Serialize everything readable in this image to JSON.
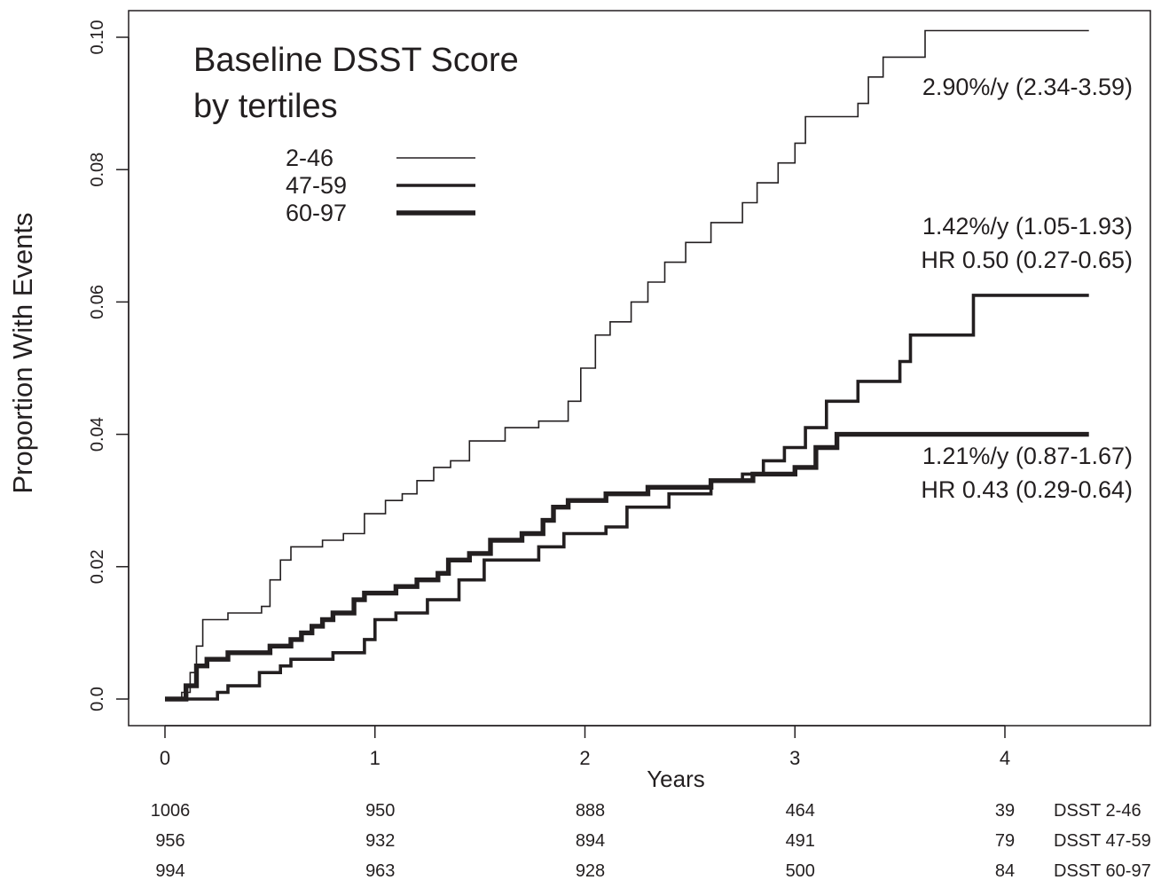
{
  "chart_data": {
    "type": "line",
    "title": "Baseline DSST Score\nby tertiles",
    "xlabel": "Years",
    "ylabel": "Proportion With Events",
    "xlim": [
      -0.2,
      4.6
    ],
    "ylim": [
      -0.004,
      0.104
    ],
    "x_ticks": [
      0,
      1,
      2,
      3,
      4
    ],
    "x_tick_labels": [
      "0",
      "1",
      "2",
      "3",
      "4"
    ],
    "y_ticks": [
      0.0,
      0.02,
      0.04,
      0.06,
      0.08,
      0.1
    ],
    "y_tick_labels": [
      "0.0",
      "0.02",
      "0.04",
      "0.06",
      "0.08",
      "0.10"
    ],
    "grid": false,
    "legend_position": "top-left",
    "series": [
      {
        "name": "2-46",
        "color": "#231f20",
        "stroke": "thin",
        "points": [
          [
            0,
            0
          ],
          [
            0.08,
            0.001
          ],
          [
            0.12,
            0.004
          ],
          [
            0.15,
            0.008
          ],
          [
            0.18,
            0.012
          ],
          [
            0.3,
            0.013
          ],
          [
            0.46,
            0.014
          ],
          [
            0.5,
            0.018
          ],
          [
            0.55,
            0.021
          ],
          [
            0.6,
            0.023
          ],
          [
            0.75,
            0.024
          ],
          [
            0.85,
            0.025
          ],
          [
            0.95,
            0.028
          ],
          [
            1.05,
            0.03
          ],
          [
            1.13,
            0.031
          ],
          [
            1.2,
            0.033
          ],
          [
            1.28,
            0.035
          ],
          [
            1.36,
            0.036
          ],
          [
            1.45,
            0.039
          ],
          [
            1.62,
            0.041
          ],
          [
            1.78,
            0.042
          ],
          [
            1.92,
            0.045
          ],
          [
            1.98,
            0.05
          ],
          [
            2.05,
            0.055
          ],
          [
            2.12,
            0.057
          ],
          [
            2.22,
            0.06
          ],
          [
            2.3,
            0.063
          ],
          [
            2.38,
            0.066
          ],
          [
            2.48,
            0.069
          ],
          [
            2.6,
            0.072
          ],
          [
            2.75,
            0.075
          ],
          [
            2.82,
            0.078
          ],
          [
            2.92,
            0.081
          ],
          [
            3.0,
            0.084
          ],
          [
            3.05,
            0.088
          ],
          [
            3.3,
            0.09
          ],
          [
            3.35,
            0.094
          ],
          [
            3.42,
            0.097
          ],
          [
            3.62,
            0.101
          ],
          [
            4.4,
            0.101
          ]
        ]
      },
      {
        "name": "47-59",
        "color": "#231f20",
        "stroke": "medium",
        "points": [
          [
            0,
            0
          ],
          [
            0.25,
            0.001
          ],
          [
            0.3,
            0.002
          ],
          [
            0.45,
            0.004
          ],
          [
            0.55,
            0.005
          ],
          [
            0.6,
            0.006
          ],
          [
            0.8,
            0.007
          ],
          [
            0.95,
            0.009
          ],
          [
            1.0,
            0.012
          ],
          [
            1.1,
            0.013
          ],
          [
            1.25,
            0.015
          ],
          [
            1.4,
            0.018
          ],
          [
            1.52,
            0.021
          ],
          [
            1.78,
            0.023
          ],
          [
            1.9,
            0.025
          ],
          [
            2.1,
            0.026
          ],
          [
            2.2,
            0.029
          ],
          [
            2.4,
            0.031
          ],
          [
            2.6,
            0.033
          ],
          [
            2.75,
            0.034
          ],
          [
            2.85,
            0.036
          ],
          [
            2.95,
            0.038
          ],
          [
            3.05,
            0.041
          ],
          [
            3.15,
            0.045
          ],
          [
            3.3,
            0.048
          ],
          [
            3.5,
            0.051
          ],
          [
            3.55,
            0.055
          ],
          [
            3.85,
            0.061
          ],
          [
            4.4,
            0.061
          ]
        ]
      },
      {
        "name": "60-97",
        "color": "#231f20",
        "stroke": "thick",
        "points": [
          [
            0,
            0
          ],
          [
            0.1,
            0.002
          ],
          [
            0.15,
            0.005
          ],
          [
            0.2,
            0.006
          ],
          [
            0.3,
            0.007
          ],
          [
            0.5,
            0.008
          ],
          [
            0.6,
            0.009
          ],
          [
            0.65,
            0.01
          ],
          [
            0.7,
            0.011
          ],
          [
            0.75,
            0.012
          ],
          [
            0.8,
            0.013
          ],
          [
            0.9,
            0.015
          ],
          [
            0.95,
            0.016
          ],
          [
            1.1,
            0.017
          ],
          [
            1.2,
            0.018
          ],
          [
            1.3,
            0.019
          ],
          [
            1.35,
            0.021
          ],
          [
            1.45,
            0.022
          ],
          [
            1.55,
            0.024
          ],
          [
            1.7,
            0.025
          ],
          [
            1.8,
            0.027
          ],
          [
            1.85,
            0.029
          ],
          [
            1.92,
            0.03
          ],
          [
            2.1,
            0.031
          ],
          [
            2.3,
            0.032
          ],
          [
            2.6,
            0.033
          ],
          [
            2.8,
            0.034
          ],
          [
            3.0,
            0.035
          ],
          [
            3.1,
            0.038
          ],
          [
            3.2,
            0.04
          ],
          [
            4.4,
            0.04
          ]
        ]
      }
    ],
    "annotations": [
      {
        "lines": [
          "2.90%/y (2.34-3.59)"
        ],
        "series": "2-46"
      },
      {
        "lines": [
          "1.42%/y (1.05-1.93)",
          "HR 0.50 (0.27-0.65)"
        ],
        "series": "47-59"
      },
      {
        "lines": [
          "1.21%/y (0.87-1.67)",
          "HR 0.43 (0.29-0.64)"
        ],
        "series": "60-97"
      }
    ],
    "risk_table": {
      "times": [
        0,
        1,
        2,
        3,
        4
      ],
      "rows": [
        {
          "label": "DSST 2-46",
          "counts": [
            1006,
            950,
            888,
            464,
            39
          ]
        },
        {
          "label": "DSST 47-59",
          "counts": [
            956,
            932,
            894,
            491,
            79
          ]
        },
        {
          "label": "DSST 60-97",
          "counts": [
            994,
            963,
            928,
            500,
            84
          ]
        }
      ]
    }
  }
}
